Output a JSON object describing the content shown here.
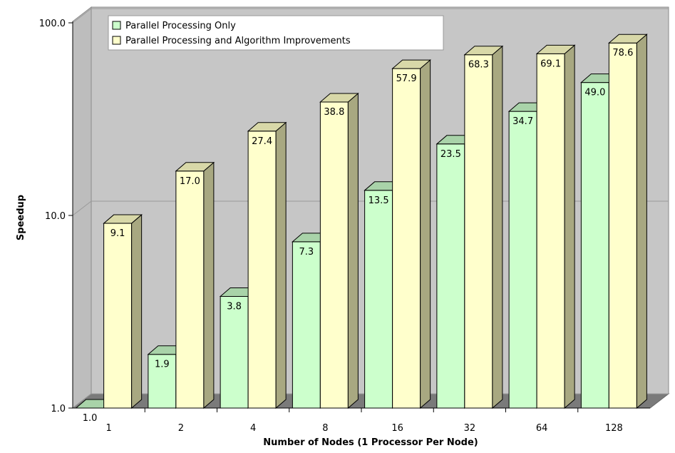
{
  "chart_data": {
    "type": "bar",
    "title": "",
    "xlabel": "Number of Nodes (1 Processor Per Node)",
    "ylabel": "Speedup",
    "yscale": "log",
    "ylim": [
      1,
      100
    ],
    "yticks": [
      "1.0",
      "10.0",
      "100.0"
    ],
    "categories": [
      "1",
      "2",
      "4",
      "8",
      "16",
      "32",
      "64",
      "128"
    ],
    "series": [
      {
        "name": "Parallel Processing Only",
        "color": "#ccffcc",
        "values": [
          1.0,
          1.9,
          3.8,
          7.3,
          13.5,
          23.5,
          34.7,
          49.0
        ],
        "labels": [
          "1.0",
          "1.9",
          "3.8",
          "7.3",
          "13.5",
          "23.5",
          "34.7",
          "49.0"
        ]
      },
      {
        "name": "Parallel Processing and Algorithm Improvements",
        "color": "#ffffcc",
        "values": [
          9.1,
          17.0,
          27.4,
          38.8,
          57.9,
          68.3,
          69.1,
          78.6
        ],
        "labels": [
          "9.1",
          "17.0",
          "27.4",
          "38.8",
          "57.9",
          "68.3",
          "69.1",
          "78.6"
        ]
      }
    ],
    "legend_position": "top-left",
    "grid": true,
    "style": "3d"
  }
}
